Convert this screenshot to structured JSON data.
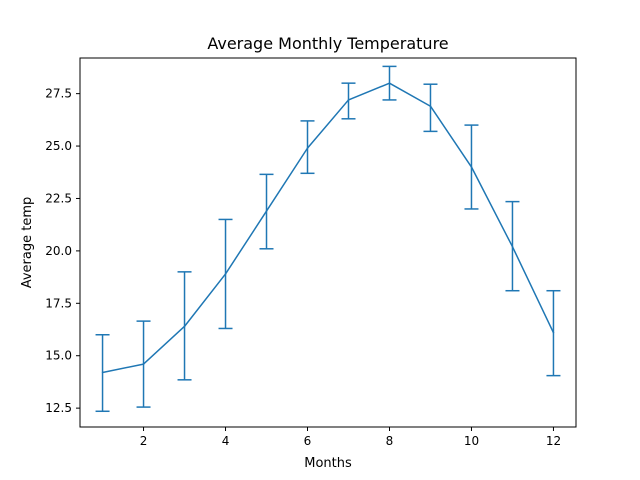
{
  "chart_data": {
    "type": "line",
    "title": "Average Monthly Temperature",
    "xlabel": "Months",
    "ylabel": "Average temp",
    "x": [
      1,
      2,
      3,
      4,
      5,
      6,
      7,
      8,
      9,
      10,
      11,
      12
    ],
    "series": [
      {
        "values": [
          14.2,
          14.6,
          16.4,
          18.9,
          21.9,
          24.9,
          27.2,
          28.0,
          26.9,
          24.0,
          20.2,
          16.1
        ],
        "error_lower": [
          12.35,
          12.55,
          13.85,
          16.3,
          20.1,
          23.7,
          26.3,
          27.2,
          25.7,
          22.0,
          18.1,
          14.05
        ],
        "error_upper": [
          16.0,
          16.65,
          19.0,
          21.5,
          23.65,
          26.2,
          28.0,
          28.8,
          27.95,
          26.0,
          22.35,
          18.1
        ],
        "color": "#1f77b4"
      }
    ],
    "xlim": [
      0.45,
      12.55
    ],
    "ylim": [
      11.6,
      29.2
    ],
    "xticks": [
      2,
      4,
      6,
      8,
      10,
      12
    ],
    "yticks": [
      12.5,
      15.0,
      17.5,
      20.0,
      22.5,
      25.0,
      27.5
    ],
    "ytick_labels": [
      "12.5",
      "15.0",
      "17.5",
      "20.0",
      "22.5",
      "25.0",
      "27.5"
    ],
    "grid": false
  }
}
